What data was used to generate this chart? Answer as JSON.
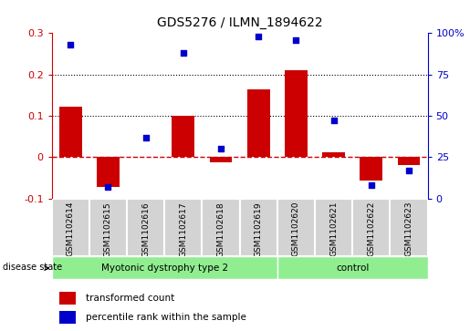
{
  "title": "GDS5276 / ILMN_1894622",
  "samples": [
    "GSM1102614",
    "GSM1102615",
    "GSM1102616",
    "GSM1102617",
    "GSM1102618",
    "GSM1102619",
    "GSM1102620",
    "GSM1102621",
    "GSM1102622",
    "GSM1102623"
  ],
  "transformed_count": [
    0.122,
    -0.072,
    0.002,
    0.1,
    -0.012,
    0.165,
    0.21,
    0.012,
    -0.057,
    -0.02
  ],
  "percentile_rank": [
    93,
    7,
    37,
    88,
    30,
    98,
    96,
    47,
    8,
    17
  ],
  "bar_color": "#cc0000",
  "dot_color": "#0000cc",
  "ylim_left": [
    -0.1,
    0.3
  ],
  "ylim_right": [
    0,
    100
  ],
  "yticks_left": [
    -0.1,
    0.0,
    0.1,
    0.2,
    0.3
  ],
  "yticks_right": [
    0,
    25,
    50,
    75,
    100
  ],
  "yticklabels_right": [
    "0",
    "25",
    "50",
    "75",
    "100%"
  ],
  "groups": [
    {
      "label": "Myotonic dystrophy type 2",
      "start": 0,
      "end": 5,
      "color": "#90ee90"
    },
    {
      "label": "control",
      "start": 6,
      "end": 9,
      "color": "#90ee90"
    }
  ],
  "disease_state_label": "disease state",
  "legend_bar_label": "transformed count",
  "legend_dot_label": "percentile rank within the sample",
  "hline_color": "#cc0000",
  "dotted_line_color": "#000000",
  "background_color": "#ffffff",
  "sample_box_color": "#d3d3d3",
  "left_axis_color": "#cc0000",
  "right_axis_color": "#0000cc"
}
